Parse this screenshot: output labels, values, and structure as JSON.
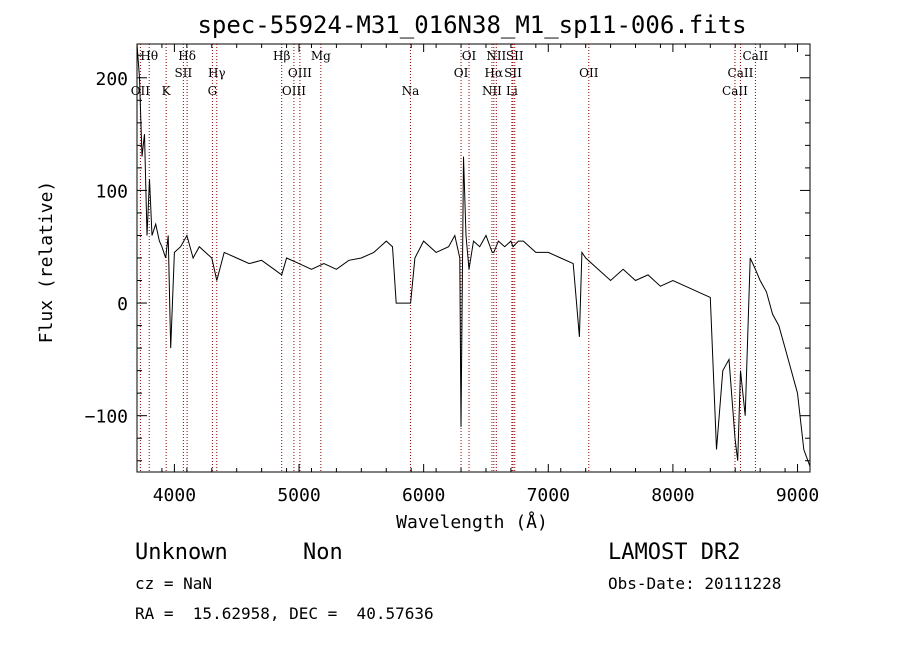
{
  "chart_data": {
    "type": "line",
    "title": "spec-55924-M31_016N38_M1_sp11-006.fits",
    "xlabel": "Wavelength (Å)",
    "ylabel": "Flux (relative)",
    "xlim": [
      3700,
      9100
    ],
    "ylim": [
      -150,
      230
    ],
    "xticks": [
      4000,
      5000,
      6000,
      7000,
      8000,
      9000
    ],
    "yticks": [
      -100,
      0,
      100,
      200
    ],
    "grid": false,
    "line_color": "#000000",
    "marker_color": "#8b0000",
    "series": [
      {
        "x": [
          3700,
          3720,
          3740,
          3760,
          3780,
          3800,
          3820,
          3850,
          3880,
          3900,
          3930,
          3950,
          3970,
          4000,
          4050,
          4100,
          4150,
          4200,
          4250,
          4300,
          4340,
          4400,
          4500,
          4600,
          4700,
          4800,
          4861,
          4900,
          5000,
          5100,
          5200,
          5300,
          5400,
          5500,
          5600,
          5700,
          5750,
          5780,
          5850,
          5895,
          5930,
          6000,
          6100,
          6200,
          6250,
          6290,
          6300,
          6320,
          6340,
          6364,
          6400,
          6450,
          6500,
          6550,
          6563,
          6600,
          6650,
          6700,
          6717,
          6760,
          6800,
          6850,
          6900,
          7000,
          7100,
          7200,
          7250,
          7270,
          7300,
          7400,
          7500,
          7600,
          7700,
          7800,
          7900,
          8000,
          8100,
          8200,
          8300,
          8350,
          8400,
          8450,
          8498,
          8520,
          8542,
          8580,
          8620,
          8662,
          8700,
          8750,
          8800,
          8850,
          8900,
          8950,
          9000,
          9050,
          9100
        ],
        "y": [
          230,
          200,
          130,
          150,
          60,
          110,
          60,
          70,
          55,
          50,
          40,
          60,
          -40,
          45,
          50,
          60,
          40,
          50,
          45,
          40,
          20,
          45,
          40,
          35,
          38,
          30,
          25,
          40,
          35,
          30,
          35,
          30,
          38,
          40,
          45,
          55,
          50,
          0,
          0,
          0,
          40,
          55,
          45,
          50,
          60,
          40,
          -110,
          130,
          60,
          30,
          55,
          50,
          60,
          45,
          45,
          55,
          50,
          55,
          50,
          55,
          55,
          50,
          45,
          45,
          40,
          35,
          -30,
          45,
          40,
          30,
          20,
          30,
          20,
          25,
          15,
          20,
          15,
          10,
          5,
          -130,
          -60,
          -50,
          -120,
          -140,
          -60,
          -100,
          40,
          30,
          20,
          10,
          -10,
          -20,
          -40,
          -60,
          -80,
          -130,
          -145
        ]
      }
    ],
    "line_markers": [
      {
        "label": "Hθ",
        "x": 3798,
        "row": 1
      },
      {
        "label": "OII",
        "x": 3727,
        "row": 3
      },
      {
        "label": "K",
        "x": 3934,
        "row": 3
      },
      {
        "label": "Hδ",
        "x": 4102,
        "row": 1
      },
      {
        "label": "SII",
        "x": 4072,
        "row": 2
      },
      {
        "label": "Hγ",
        "x": 4340,
        "row": 2
      },
      {
        "label": "G",
        "x": 4305,
        "row": 3
      },
      {
        "label": "Hβ",
        "x": 4861,
        "row": 1
      },
      {
        "label": "OIII",
        "x": 5007,
        "row": 2
      },
      {
        "label": "OIII",
        "x": 4959,
        "row": 3
      },
      {
        "label": "Mg",
        "x": 5175,
        "row": 1
      },
      {
        "label": "Na",
        "x": 5894,
        "row": 3
      },
      {
        "label": "OI",
        "x": 6364,
        "row": 1
      },
      {
        "label": "OI",
        "x": 6300,
        "row": 2
      },
      {
        "label": "NII",
        "x": 6583,
        "row": 1
      },
      {
        "label": "SII",
        "x": 6731,
        "row": 1
      },
      {
        "label": "Hα",
        "x": 6563,
        "row": 2
      },
      {
        "label": "SII",
        "x": 6717,
        "row": 2
      },
      {
        "label": "NII",
        "x": 6548,
        "row": 3
      },
      {
        "label": "Li",
        "x": 6708,
        "row": 3
      },
      {
        "label": "OII",
        "x": 7325,
        "row": 2
      },
      {
        "label": "CaII",
        "x": 8662,
        "row": 1
      },
      {
        "label": "CaII",
        "x": 8542,
        "row": 2
      },
      {
        "label": "CaII",
        "x": 8498,
        "row": 3
      }
    ]
  },
  "footer": {
    "object_class": "Unknown",
    "subclass": "Non",
    "survey": "LAMOST DR2",
    "redshift": "cz = NaN",
    "obs_date": "Obs-Date: 20111228",
    "coords": "RA =  15.62958, DEC =  40.57636"
  }
}
